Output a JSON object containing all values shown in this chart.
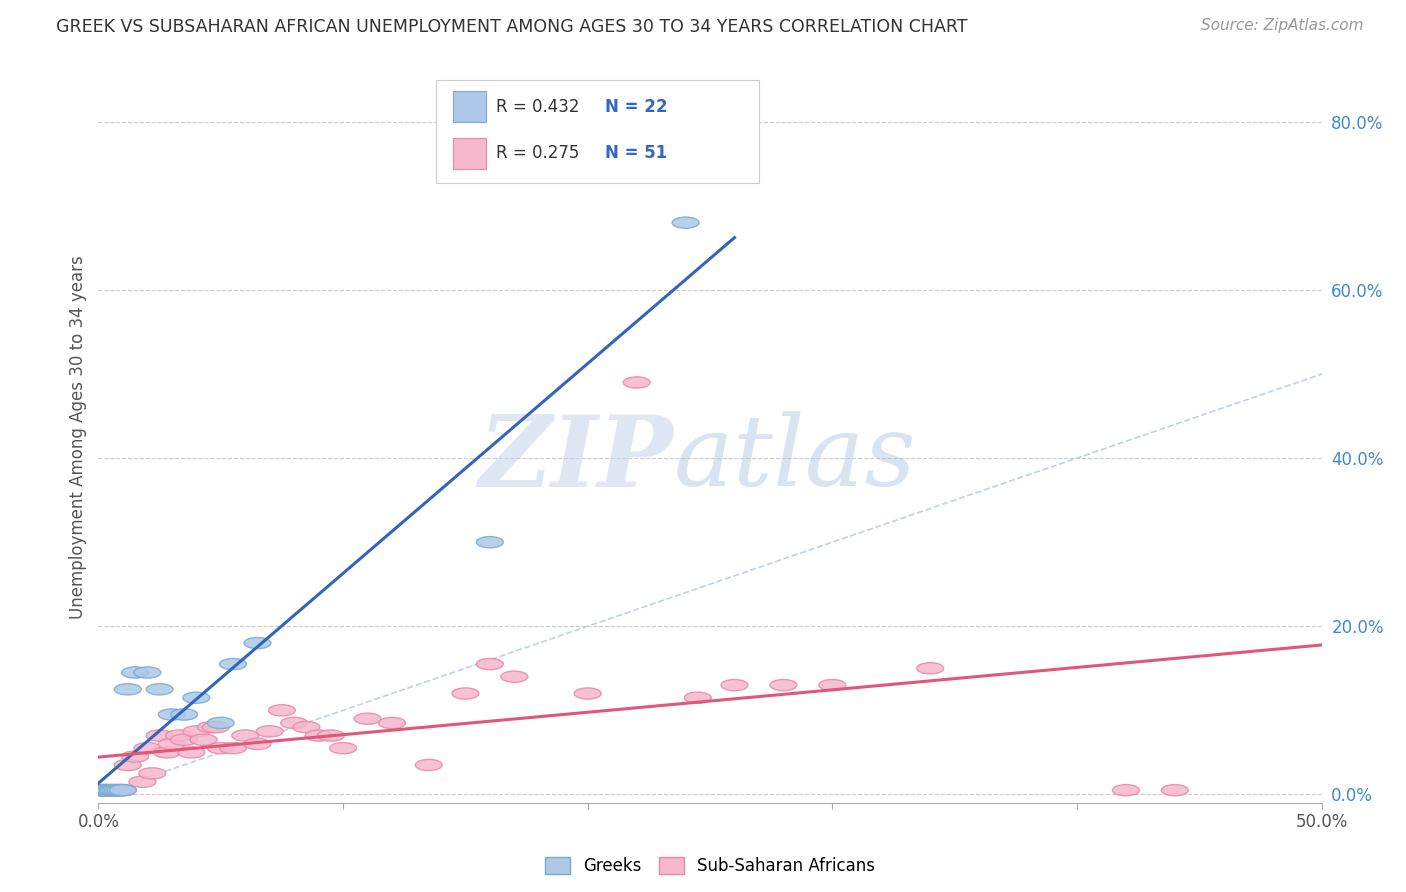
{
  "title": "GREEK VS SUBSAHARAN AFRICAN UNEMPLOYMENT AMONG AGES 30 TO 34 YEARS CORRELATION CHART",
  "source": "Source: ZipAtlas.com",
  "ylabel": "Unemployment Among Ages 30 to 34 years",
  "ylabel_right_ticks": [
    "0.0%",
    "20.0%",
    "40.0%",
    "60.0%",
    "80.0%"
  ],
  "ylabel_right_vals": [
    0.0,
    0.2,
    0.4,
    0.6,
    0.8
  ],
  "xlim": [
    0.0,
    0.5
  ],
  "ylim": [
    -0.01,
    0.86
  ],
  "greek_color": "#adc8e8",
  "greek_edge_color": "#7aaad0",
  "greek_line_color": "#3366bb",
  "ssa_color": "#f5b8cc",
  "ssa_edge_color": "#e888aa",
  "ssa_line_color": "#e05878",
  "diag_line_color": "#b8cce4",
  "legend_R_color": "#333333",
  "legend_N_color": "#3366cc",
  "greek_x": [
    0.001,
    0.002,
    0.003,
    0.004,
    0.005,
    0.006,
    0.007,
    0.008,
    0.009,
    0.01,
    0.012,
    0.015,
    0.02,
    0.025,
    0.03,
    0.035,
    0.04,
    0.05,
    0.055,
    0.065,
    0.16,
    0.24
  ],
  "greek_y": [
    0.005,
    0.005,
    0.005,
    0.005,
    0.005,
    0.005,
    0.005,
    0.005,
    0.005,
    0.005,
    0.125,
    0.145,
    0.145,
    0.125,
    0.095,
    0.095,
    0.115,
    0.085,
    0.155,
    0.18,
    0.3,
    0.68
  ],
  "ssa_x": [
    0.001,
    0.002,
    0.003,
    0.004,
    0.005,
    0.006,
    0.007,
    0.008,
    0.009,
    0.01,
    0.012,
    0.015,
    0.018,
    0.02,
    0.022,
    0.025,
    0.028,
    0.03,
    0.033,
    0.035,
    0.038,
    0.04,
    0.043,
    0.046,
    0.048,
    0.05,
    0.055,
    0.06,
    0.065,
    0.07,
    0.075,
    0.08,
    0.085,
    0.09,
    0.095,
    0.1,
    0.11,
    0.12,
    0.135,
    0.15,
    0.16,
    0.17,
    0.2,
    0.22,
    0.245,
    0.26,
    0.28,
    0.3,
    0.34,
    0.42,
    0.44
  ],
  "ssa_y": [
    0.005,
    0.005,
    0.005,
    0.005,
    0.005,
    0.005,
    0.005,
    0.005,
    0.005,
    0.005,
    0.035,
    0.045,
    0.015,
    0.055,
    0.025,
    0.07,
    0.05,
    0.06,
    0.07,
    0.065,
    0.05,
    0.075,
    0.065,
    0.08,
    0.08,
    0.055,
    0.055,
    0.07,
    0.06,
    0.075,
    0.1,
    0.085,
    0.08,
    0.07,
    0.07,
    0.055,
    0.09,
    0.085,
    0.035,
    0.12,
    0.155,
    0.14,
    0.12,
    0.49,
    0.115,
    0.13,
    0.13,
    0.13,
    0.15,
    0.005,
    0.005
  ]
}
